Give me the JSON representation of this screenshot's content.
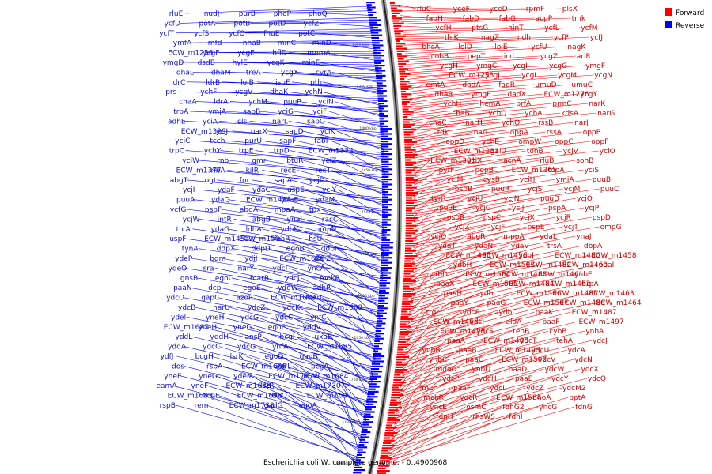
{
  "caption": "Escherichia coli W, complete genome. - 0..4900968",
  "legend": {
    "forward": "Forward",
    "reverse": "Reverse",
    "forward_color": "#ff0000",
    "reverse_color": "#0000ff"
  },
  "kbp_ticks": [
    "1300 kbp",
    "1350 kbp",
    "1400 kbp",
    "1450 kbp",
    "1500 kbp",
    "1550 kbp",
    "1600 kbp",
    "1650 kbp",
    "1700 kbp",
    "1750 kbp",
    "1800 kbp"
  ],
  "forward_genes": [
    "rluC",
    "yceF",
    "yceD",
    "rpmF",
    "plsX",
    "fabH",
    "fabD",
    "fabG",
    "acpP",
    "tmk",
    "ycfH",
    "ptsG",
    "hinT",
    "ycfL",
    "ycfM",
    "thiK",
    "nagZ",
    "ndh",
    "ycfP",
    "ycfJ",
    "bhsA",
    "lolD",
    "lolE",
    "ycfU",
    "nagK",
    "cobB",
    "pepT",
    "icd",
    "ycgZ",
    "ariR",
    "ycgH",
    "ymgC",
    "ycgI",
    "ycgG",
    "ymgF",
    "ECW_m1253",
    "ycgJ",
    "ycgL",
    "ycgM",
    "ycgN",
    "emtA",
    "dadA",
    "fadR",
    "umuD",
    "umuC",
    "dhaR",
    "ymgE",
    "dadX",
    "ECW_m1276",
    "ycgY",
    "ychH",
    "hemA",
    "prfA",
    "prmC",
    "narK",
    "chaB",
    "ychQ",
    "ychA",
    "kdsA",
    "narG",
    "chaC",
    "narH",
    "ychO",
    "rssB",
    "narJ",
    "tdk",
    "narI",
    "oppA",
    "rssA",
    "oppB",
    "oppD",
    "ychE",
    "ompW",
    "oppC",
    "oppF",
    "ECW_m1333",
    "galU",
    "tonB",
    "ycjV",
    "yciO",
    "ECW_m1381",
    "yciX",
    "acnA",
    "rluB",
    "sohB",
    "pyrF",
    "pgpB",
    "ECW_m1365",
    "topA",
    "yciS",
    "yciM",
    "cysB",
    "yciH",
    "ymiA",
    "puuB",
    "pspB",
    "puuR",
    "ycjS",
    "ycjM",
    "puuC",
    "tyrR",
    "ycjU",
    "ycjN",
    "puuD",
    "ycjO",
    "puuE",
    "ycjG",
    "ycjJ",
    "pspA",
    "ycjP",
    "pspB",
    "pspC",
    "ycjX",
    "ycjR",
    "pspD",
    "ycjZ",
    "ycjF",
    "pspE",
    "ycjT",
    "ompG",
    "ycjQ",
    "abgR",
    "mppA",
    "ydaL",
    "ynaJ",
    "ydaT",
    "ydaN",
    "ydaV",
    "trsA",
    "dbpA",
    "ECW_m1495",
    "ECW_m1456",
    "ydbJ",
    "ECW_m1480",
    "ECW_m1458",
    "ydbH",
    "ECW_m1503",
    "ECW_m1482",
    "ECW_m1460",
    "paaI",
    "ydbD",
    "ECW_m1504",
    "ECW_m1483",
    "ECW_m1461",
    "ynbE",
    "paaX",
    "ECW_m1505",
    "ECW_m1484",
    "ECW_m1462",
    "hrpA",
    "paaH",
    "ydbL",
    "ECW_m1506",
    "ECW_m1485",
    "ECW_m1463",
    "paaY",
    "paaG",
    "ECW_m1507",
    "ECW_m1486",
    "ECW_m1464",
    "trg",
    "ydcF",
    "ydbC",
    "paaK",
    "ECW_m1487",
    "ECW_m1465",
    "ydcI",
    "aldA",
    "paaF",
    "ECW_m1497",
    "ECW_m1478",
    "ydcS",
    "tehB",
    "cybB",
    "ynbA",
    "paaA",
    "ECW_m1488",
    "ydcT",
    "tehA",
    "ydcJ",
    "ynbB",
    "paaB",
    "ECW_m1493",
    "ydcU",
    "ydcA",
    "ynbC",
    "paaC",
    "ECW_m1502",
    "ydcV",
    "ydcN",
    "mdoD",
    "ynbD",
    "paaD",
    "ydcW",
    "ydcX",
    "ydcP",
    "ydcH",
    "paaE",
    "ydcY",
    "ydcQ",
    "rimL",
    "paaF",
    "ydcL",
    "ydcZ",
    "ydcM2",
    "mcbR",
    "ydcR",
    "ECW_m1584",
    "nhoA",
    "pptA",
    "yncE",
    "osmC",
    "fdnG2",
    "yncG",
    "fdnG",
    "fdnH",
    "rhsWS",
    "fdnI"
  ],
  "reverse_genes": [
    "rluE",
    "nudJ",
    "purB",
    "phoP",
    "phoQ",
    "ycfD",
    "potA",
    "potB",
    "potD",
    "ycfZ",
    "ycfT",
    "ycfS",
    "ycfQ",
    "fhuE",
    "potC",
    "ymfA",
    "mfd",
    "nhaB",
    "minC",
    "minD",
    "ECW_m1256",
    "ycgF",
    "ycgE",
    "hflD",
    "mnmA",
    "ymgD",
    "dsdB",
    "hylE",
    "ycgK",
    "minE",
    "dhaL",
    "dhaM",
    "treA",
    "ycgX",
    "cvrA",
    "ldrC",
    "ldrB",
    "lolB",
    "ispE",
    "pth",
    "prs",
    "ychF",
    "ycgV",
    "dhaK",
    "ychN",
    "chaA",
    "ldrA",
    "ychM",
    "puuP",
    "yciN",
    "trpA",
    "ymjA",
    "sapB",
    "yciG",
    "yciF",
    "adhE",
    "yciA",
    "cls",
    "narL",
    "sapC",
    "ECW_m1329",
    "yciJ",
    "narX",
    "sapD",
    "yciK",
    "yciC",
    "tcch",
    "purU",
    "sapF",
    "fabI",
    "trpC",
    "ychY",
    "trpE",
    "trpD",
    "ECW_m1334",
    "yciW",
    "rnb",
    "gmr",
    "btuR",
    "yciZ",
    "ECW_m1377",
    "ribA",
    "kilR",
    "recE",
    "recT",
    "abgT",
    "ogt",
    "fnr",
    "sapA",
    "ycjD",
    "ycjI",
    "ydaF",
    "ydaC",
    "uspE",
    "ycjY",
    "puuA",
    "ydaQ",
    "ECW_m1424",
    "ydaE",
    "ydaM",
    "ycfG",
    "pspF",
    "abgA",
    "mpaA",
    "tpx",
    "ycjW",
    "intR",
    "abgB",
    "ynaI",
    "racC",
    "ttcA",
    "ydaG",
    "ldhA",
    "ydbK",
    "ompN",
    "uspF",
    "ECW_m1455",
    "ECW_m1501",
    "feaR",
    "hsU",
    "tynA",
    "ddpX",
    "ddpD",
    "egoB",
    "ddpF",
    "ydeP",
    "bdm",
    "ydjJ",
    "ECW_m1628",
    "narZ",
    "ydeO",
    "sra",
    "narY",
    "ydcI",
    "yncA",
    "gnsB",
    "egoC",
    "marB",
    "ydcJ",
    "mokB",
    "paaN",
    "dcp",
    "egoE",
    "yddW",
    "adhP",
    "ydcO",
    "gapC",
    "azoR",
    "ECW_m1689",
    "marC",
    "ydcB",
    "narU",
    "ydcZ",
    "ydcK",
    "ECW_m1688",
    "ydel",
    "yneH",
    "ydcG",
    "ydcC",
    "ynfC",
    "ECW_m1687",
    "ydeH",
    "yneG",
    "egoF",
    "yddV",
    "yddL",
    "yddH",
    "ansP",
    "bcgI",
    "uxaB",
    "yddA",
    "ydcC",
    "ydcG",
    "ynfA",
    "ECW_m1685",
    "ydfJ",
    "bcgH",
    "lsrK",
    "egoD",
    "gadB",
    "dos",
    "rspA",
    "ECW_m1686",
    "ydfL",
    "bcgA",
    "yneE",
    "yneO",
    "ydeM",
    "ECW_m1727",
    "ECW_m1684",
    "eamA",
    "yneF",
    "ECW_m1638",
    "lsrR",
    "ECW_m1730",
    "ECW_m1683",
    "bcgE",
    "ECW_m1698",
    "tfaQ",
    "ECW_m1697",
    "rspB",
    "rem",
    "ECW_m1738",
    "gadC",
    "egoA"
  ]
}
